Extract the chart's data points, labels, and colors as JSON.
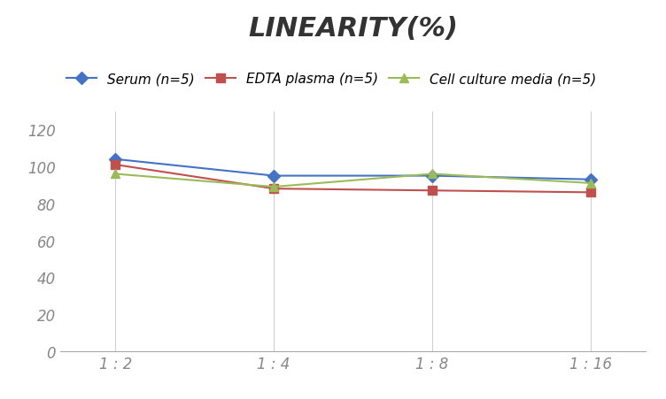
{
  "title": "LINEARITY(%)",
  "x_labels": [
    "1 : 2",
    "1 : 4",
    "1 : 8",
    "1 : 16"
  ],
  "x_positions": [
    0,
    1,
    2,
    3
  ],
  "series": [
    {
      "name": "Serum (n=5)",
      "values": [
        104,
        95,
        95,
        93
      ],
      "color": "#4472C4",
      "marker": "D",
      "linestyle": "-"
    },
    {
      "name": "EDTA plasma (n=5)",
      "values": [
        101,
        88,
        87,
        86
      ],
      "color": "#C0504D",
      "marker": "s",
      "linestyle": "-"
    },
    {
      "name": "Cell culture media (n=5)",
      "values": [
        96,
        89,
        96,
        91
      ],
      "color": "#9BBB59",
      "marker": "^",
      "linestyle": "-"
    }
  ],
  "ylim": [
    0,
    130
  ],
  "yticks": [
    0,
    20,
    40,
    60,
    80,
    100,
    120
  ],
  "title_fontsize": 22,
  "legend_fontsize": 11,
  "tick_fontsize": 12,
  "background_color": "#ffffff",
  "grid_color": "#d0d0d0"
}
